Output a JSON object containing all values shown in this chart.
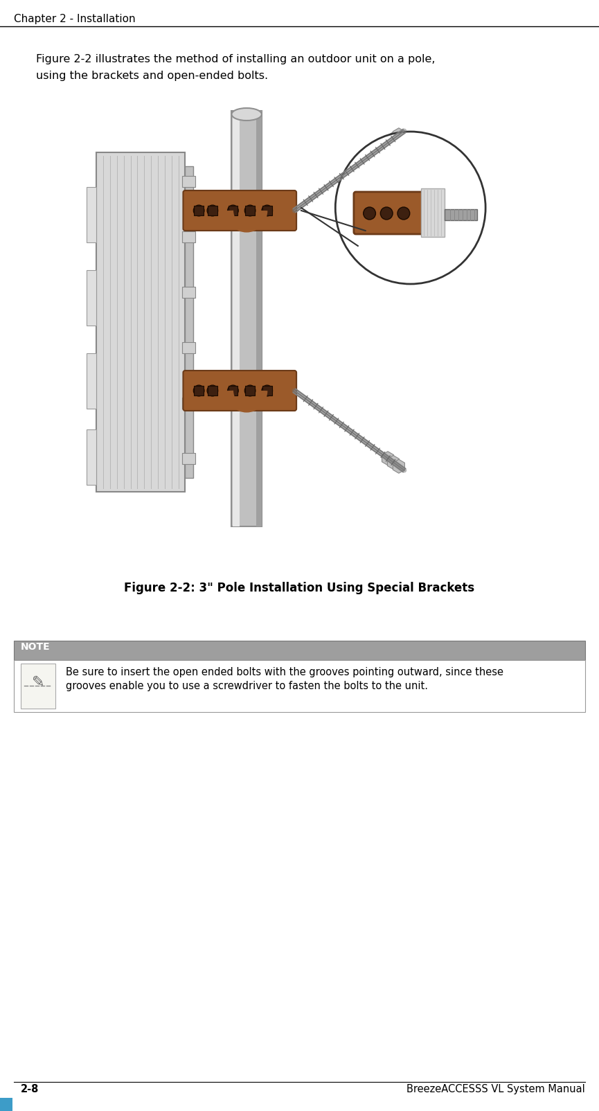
{
  "page_bg": "#ffffff",
  "header_text": "Chapter 2 - Installation",
  "header_line_color": "#000000",
  "body_text_line1": "Figure 2-2 illustrates the method of installing an outdoor unit on a pole,",
  "body_text_line2": "using the brackets and open-ended bolts.",
  "figure_caption": "Figure 2-2: 3\" Pole Installation Using Special Brackets",
  "note_label": "NOTE",
  "note_label_bg": "#9e9e9e",
  "note_text_line1": "Be sure to insert the open ended bolts with the grooves pointing outward, since these",
  "note_text_line2": "grooves enable you to use a screwdriver to fasten the bolts to the unit.",
  "footer_line_color": "#000000",
  "footer_text": "BreezeACCESSS VL System Manual",
  "footer_page": "2-8",
  "footer_bar_color": "#3d9cc8",
  "body_font_size": 11.5,
  "header_font_size": 11,
  "caption_font_size": 12,
  "note_font_size": 10.5,
  "footer_font_size": 10.5
}
